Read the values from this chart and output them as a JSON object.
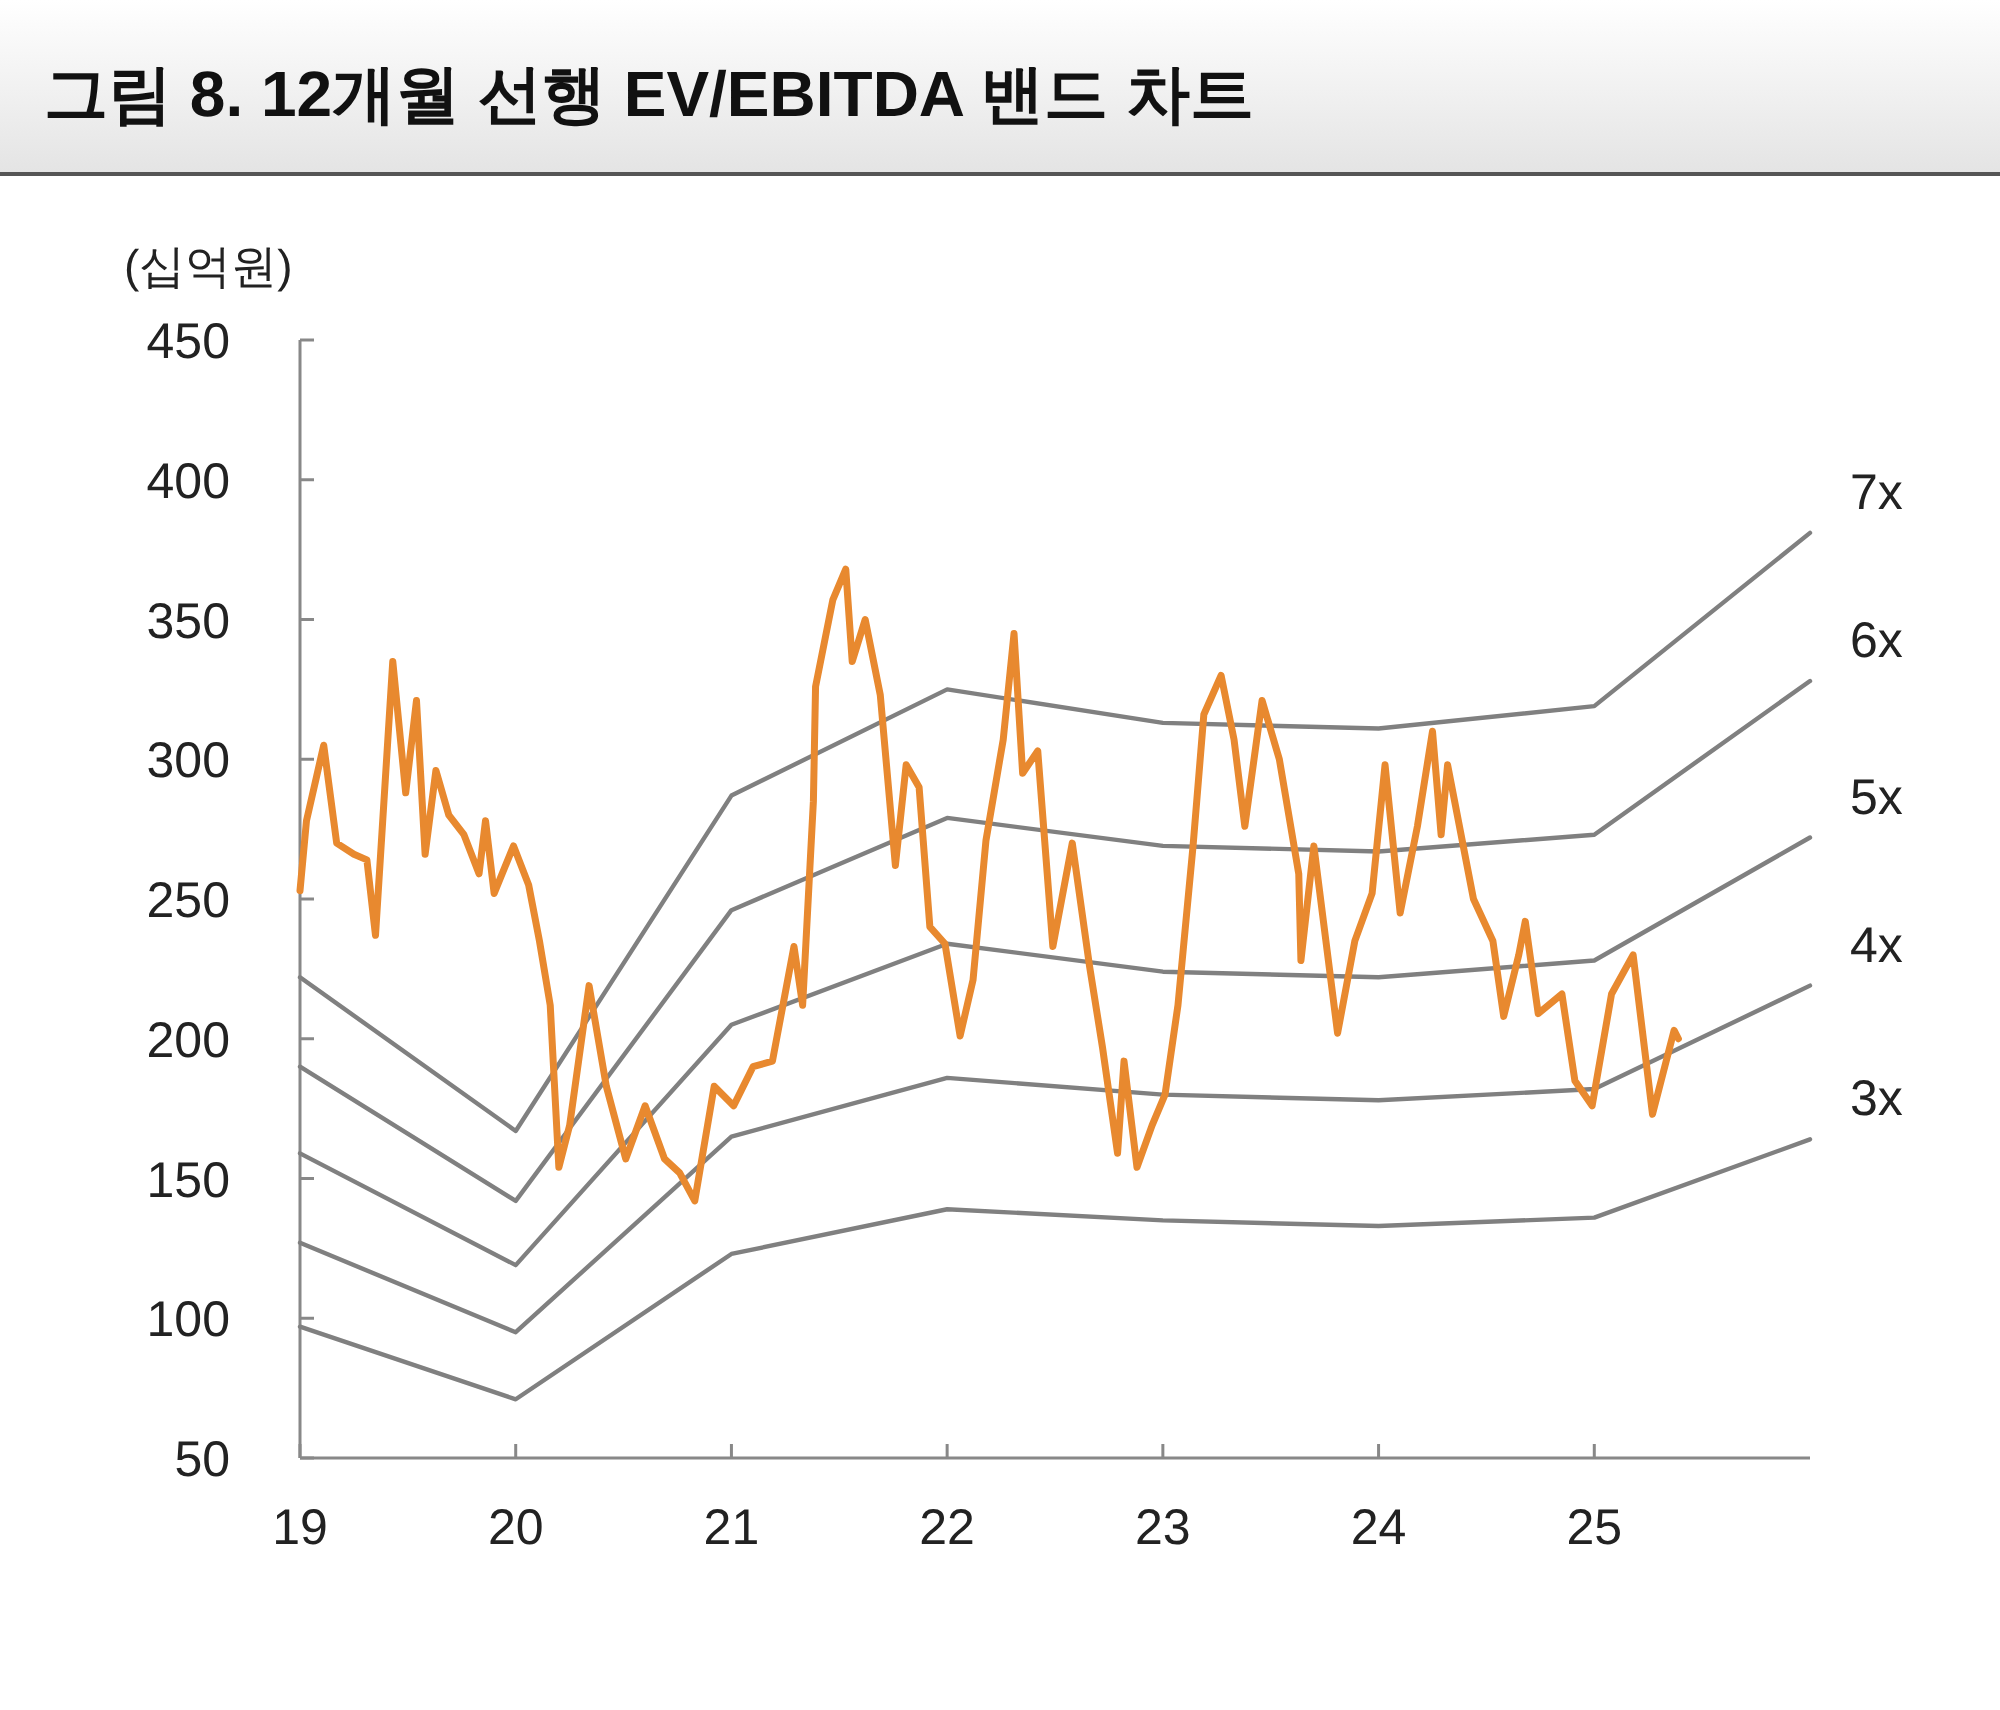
{
  "chart_data": {
    "type": "line",
    "title": "그림 8. 12개월 선행 EV/EBITDA 밴드 차트",
    "ylabel": "(십억원)",
    "xlim": [
      19,
      26
    ],
    "xticks": [
      19,
      20,
      21,
      22,
      23,
      24,
      25
    ],
    "ylim": [
      50,
      450
    ],
    "yticks": [
      50,
      100,
      150,
      200,
      250,
      300,
      350,
      400,
      450
    ],
    "grid": false,
    "marker": "none",
    "line_style": "solid",
    "series": [
      {
        "name": "7x",
        "color": "#808080",
        "x": [
          19,
          20,
          21,
          22,
          23,
          24,
          25,
          26
        ],
        "values": [
          222,
          167,
          287,
          325,
          313,
          311,
          319,
          381
        ]
      },
      {
        "name": "6x",
        "color": "#808080",
        "x": [
          19,
          20,
          21,
          22,
          23,
          24,
          25,
          26
        ],
        "values": [
          190,
          142,
          246,
          279,
          269,
          267,
          273,
          328
        ]
      },
      {
        "name": "5x",
        "color": "#808080",
        "x": [
          19,
          20,
          21,
          22,
          23,
          24,
          25,
          26
        ],
        "values": [
          159,
          119,
          205,
          234,
          224,
          222,
          228,
          272
        ]
      },
      {
        "name": "4x",
        "color": "#808080",
        "x": [
          19,
          20,
          21,
          22,
          23,
          24,
          25,
          26
        ],
        "values": [
          127,
          95,
          165,
          186,
          180,
          178,
          182,
          219
        ]
      },
      {
        "name": "3x",
        "color": "#808080",
        "x": [
          19,
          20,
          21,
          22,
          23,
          24,
          25,
          26
        ],
        "values": [
          97,
          71,
          123,
          139,
          135,
          133,
          136,
          164
        ]
      },
      {
        "color": "#e8892f",
        "x": [
          19.0,
          19.03,
          19.11,
          19.17,
          19.25,
          19.31,
          19.35,
          19.43,
          19.49,
          19.54,
          19.58,
          19.63,
          19.69,
          19.76,
          19.83,
          19.86,
          19.9,
          19.99,
          20.06,
          20.11,
          20.16,
          20.2,
          20.25,
          20.34,
          20.42,
          20.51,
          20.6,
          20.69,
          20.76,
          20.83,
          20.92,
          21.01,
          21.1,
          21.19,
          21.29,
          21.33,
          21.38,
          21.39,
          21.47,
          21.53,
          21.56,
          21.62,
          21.69,
          21.76,
          21.81,
          21.87,
          21.92,
          21.99,
          22.06,
          22.12,
          22.18,
          22.26,
          22.31,
          22.35,
          22.42,
          22.49,
          22.58,
          22.66,
          22.72,
          22.79,
          22.82,
          22.88,
          22.95,
          23.01,
          23.07,
          23.14,
          23.19,
          23.27,
          23.33,
          23.38,
          23.46,
          23.54,
          23.63,
          23.64,
          23.7,
          23.81,
          23.89,
          23.97,
          24.03,
          24.1,
          24.18,
          24.25,
          24.29,
          24.32,
          24.44,
          24.53,
          24.58,
          24.65,
          24.68,
          24.74,
          24.85,
          24.91,
          24.99,
          25.08,
          25.18,
          25.27,
          25.37,
          25.39
        ],
        "values": [
          253,
          278,
          305,
          270,
          266,
          264,
          237,
          335,
          288,
          321,
          266,
          296,
          280,
          273,
          259,
          278,
          252,
          269,
          255,
          235,
          212,
          154,
          169,
          219,
          183,
          157,
          176,
          157,
          152,
          142,
          183,
          176,
          190,
          192,
          233,
          212,
          285,
          326,
          357,
          368,
          335,
          350,
          323,
          262,
          298,
          290,
          240,
          234,
          201,
          221,
          271,
          307,
          345,
          295,
          303,
          233,
          270,
          226,
          197,
          159,
          192,
          154,
          169,
          180,
          212,
          269,
          316,
          330,
          307,
          276,
          321,
          300,
          259,
          228,
          269,
          202,
          235,
          252,
          298,
          245,
          276,
          310,
          273,
          298,
          250,
          235,
          208,
          230,
          242,
          209,
          216,
          185,
          176,
          216,
          230,
          173,
          203,
          200
        ]
      }
    ]
  }
}
